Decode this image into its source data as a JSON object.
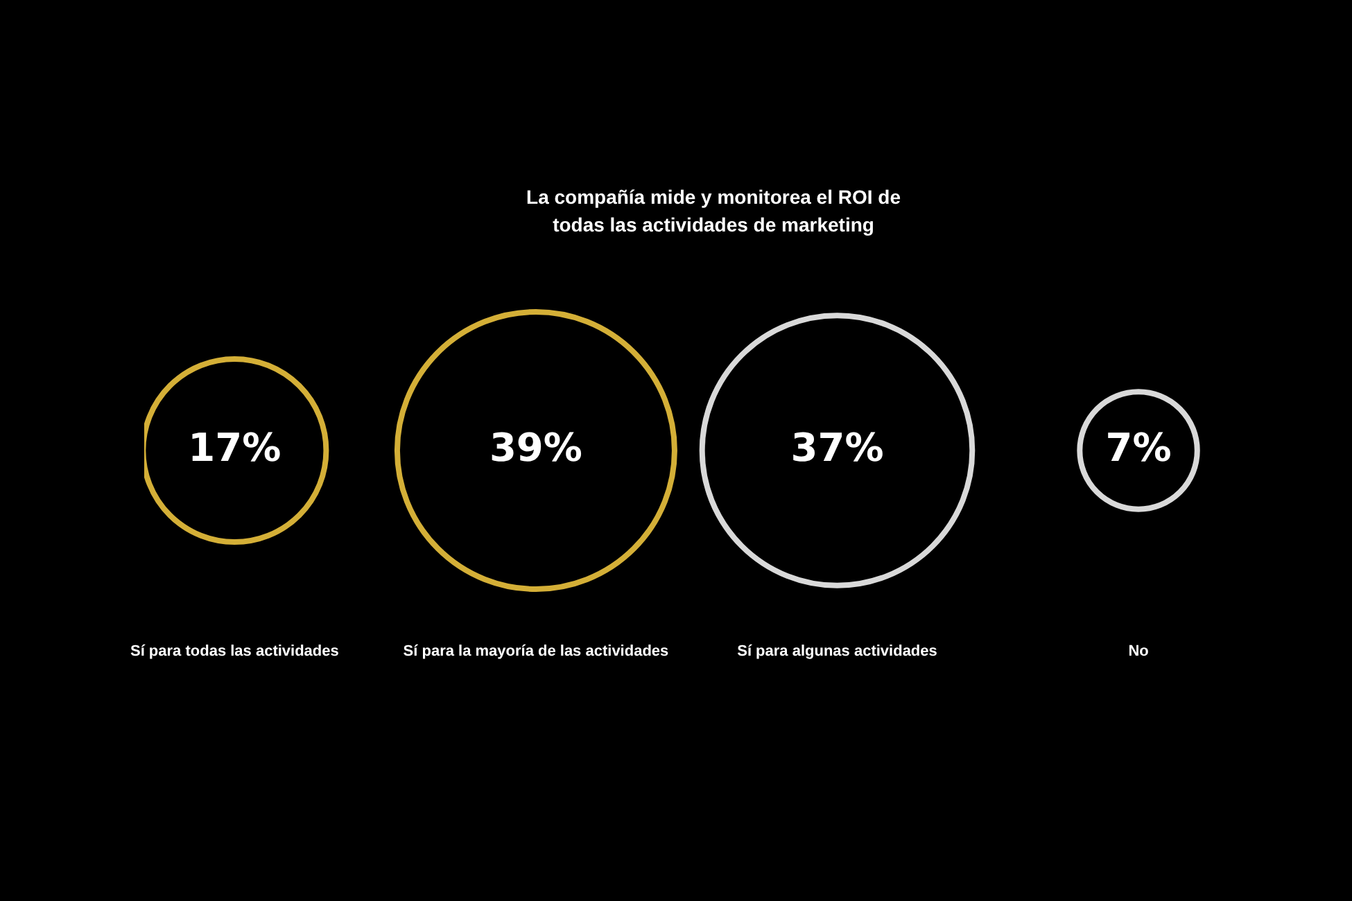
{
  "chart_data": {
    "type": "other",
    "title": "La compañía mide y monitorea el ROI de todas las actividades de marketing",
    "categories": [
      "Sí para todas las actividades",
      "Sí para la mayoría de las actividades",
      "Sí para algunas actividades",
      "No"
    ],
    "values": [
      17,
      39,
      37,
      7
    ],
    "value_labels": [
      "17%",
      "39%",
      "37%",
      "7%"
    ],
    "colors": [
      "#d4af37",
      "#d4af37",
      "#d9d9d9",
      "#d9d9d9"
    ],
    "legend": false
  }
}
